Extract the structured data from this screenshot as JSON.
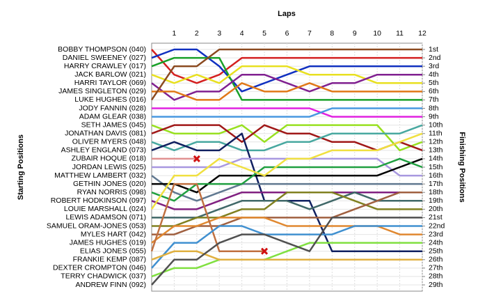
{
  "chart_data": {
    "type": "lap",
    "title": "Laps",
    "y_label": "Starting Positions",
    "y2_label": "Finishing Positions",
    "x": [
      0,
      1,
      2,
      3,
      4,
      5,
      6,
      7,
      8,
      9,
      10,
      11,
      12
    ],
    "xlim": [
      0,
      12
    ],
    "xticks": [
      1,
      2,
      3,
      4,
      5,
      6,
      7,
      8,
      9,
      10,
      11,
      12
    ],
    "ylim": [
      1,
      29
    ],
    "yticks": [
      {
        "value": 1,
        "label": "1st"
      },
      {
        "value": 2,
        "label": "2nd"
      },
      {
        "value": 3,
        "label": "3rd"
      },
      {
        "value": 4,
        "label": "4th"
      },
      {
        "value": 5,
        "label": "5th"
      },
      {
        "value": 6,
        "label": "6th"
      },
      {
        "value": 7,
        "label": "7th"
      },
      {
        "value": 8,
        "label": "8th"
      },
      {
        "value": 9,
        "label": "9th"
      },
      {
        "value": 10,
        "label": "10th"
      },
      {
        "value": 11,
        "label": "11th"
      },
      {
        "value": 12,
        "label": "12th"
      },
      {
        "value": 13,
        "label": "13th"
      },
      {
        "value": 14,
        "label": "14th"
      },
      {
        "value": 15,
        "label": "15th"
      },
      {
        "value": 16,
        "label": "16th"
      },
      {
        "value": 17,
        "label": "17th"
      },
      {
        "value": 18,
        "label": "18th"
      },
      {
        "value": 19,
        "label": "19th"
      },
      {
        "value": 20,
        "label": "20th"
      },
      {
        "value": 21,
        "label": "21st"
      },
      {
        "value": 22,
        "label": "22nd"
      },
      {
        "value": 23,
        "label": "23rd"
      },
      {
        "value": 24,
        "label": "24th"
      },
      {
        "value": 25,
        "label": "25th"
      },
      {
        "value": 26,
        "label": "26th"
      },
      {
        "value": 27,
        "label": "27th"
      },
      {
        "value": 28,
        "label": "28th"
      },
      {
        "value": 29,
        "label": "29th"
      }
    ],
    "grid": true,
    "series": [
      {
        "name": "BOBBY THOMPSON (040)",
        "color": "#d42020",
        "values": [
          1,
          4,
          5,
          4,
          2,
          2,
          2,
          2,
          2,
          2,
          2,
          2,
          2
        ]
      },
      {
        "name": "DANIEL SWEENEY (027)",
        "color": "#1030c0",
        "values": [
          2,
          1,
          1,
          3,
          6,
          5,
          4,
          3,
          3,
          3,
          3,
          3,
          3
        ]
      },
      {
        "name": "HARRY CRAWLEY (017)",
        "color": "#18a028",
        "values": [
          3,
          2,
          2,
          2,
          7,
          7,
          7,
          7,
          7,
          7,
          7,
          7,
          7
        ]
      },
      {
        "name": "JACK BARLOW (021)",
        "color": "#e8e020",
        "values": [
          4,
          5,
          4,
          5,
          3,
          3,
          3,
          4,
          4,
          4,
          5,
          5,
          5
        ]
      },
      {
        "name": "HARRI TAYLOR (069)",
        "color": "#802090",
        "values": [
          5,
          7,
          6,
          6,
          4,
          4,
          5,
          6,
          5,
          5,
          4,
          4,
          4
        ]
      },
      {
        "name": "JAMES SINGLETON (029)",
        "color": "#e07818",
        "values": [
          6,
          6,
          7,
          7,
          5,
          6,
          6,
          5,
          6,
          6,
          6,
          6,
          6
        ]
      },
      {
        "name": "LUKE HUGHES (016)",
        "color": "#8b4a20",
        "values": [
          7,
          3,
          3,
          1,
          1,
          1,
          1,
          1,
          1,
          1,
          1,
          1,
          1
        ]
      },
      {
        "name": "JODY FANNIN (028)",
        "color": "#e020e0",
        "values": [
          8,
          8,
          8,
          8,
          8,
          8,
          8,
          8,
          9,
          9,
          9,
          9,
          9
        ]
      },
      {
        "name": "ADAM GLEAR (038)",
        "color": "#4898e0",
        "values": [
          9,
          9,
          9,
          9,
          9,
          9,
          9,
          9,
          8,
          8,
          8,
          8,
          8
        ]
      },
      {
        "name": "SETH JAMES (045)",
        "color": "#98e020",
        "values": [
          10,
          11,
          11,
          11,
          10,
          12,
          10,
          10,
          10,
          10,
          10,
          13,
          12
        ]
      },
      {
        "name": "JONATHAN DAVIS (081)",
        "color": "#a01818",
        "values": [
          11,
          10,
          10,
          10,
          12,
          10,
          11,
          11,
          12,
          12,
          13,
          12,
          13
        ]
      },
      {
        "name": "OLIVER MYERS (048)",
        "color": "#48a8a0",
        "values": [
          12,
          13,
          12,
          12,
          13,
          13,
          12,
          12,
          11,
          11,
          11,
          11,
          10
        ]
      },
      {
        "name": "ASHLEY ENGLAND (073)",
        "color": "#102060",
        "values": [
          13,
          12,
          13,
          13,
          11,
          19,
          19,
          19,
          25,
          25,
          25,
          25,
          25
        ]
      },
      {
        "name": "ZUBAIR HOQUE (018)",
        "color": "#e09090",
        "retired": true,
        "values": [
          14,
          14,
          14,
          null,
          null,
          null,
          null,
          null,
          null,
          null,
          null,
          null,
          null
        ]
      },
      {
        "name": "JORDAN LEWIS (025)",
        "color": "#a898e0",
        "values": [
          15,
          15,
          15,
          15,
          14,
          14,
          14,
          14,
          14,
          14,
          14,
          16,
          16
        ]
      },
      {
        "name": "MATTHEW LAMBERT (032)",
        "color": "#607890",
        "values": [
          16,
          18,
          19,
          18,
          17,
          17,
          17,
          17,
          17,
          17,
          17,
          17,
          17
        ]
      },
      {
        "name": "GETHIN JONES (020)",
        "color": "#000000",
        "values": [
          17,
          17,
          18,
          16,
          16,
          16,
          16,
          16,
          16,
          16,
          16,
          15,
          14
        ]
      },
      {
        "name": "RYAN NORRIS (098)",
        "color": "#20a040",
        "values": [
          18,
          19,
          17,
          17,
          17,
          15,
          15,
          15,
          15,
          15,
          15,
          14,
          15
        ]
      },
      {
        "name": "ROBERT HODKINSON (097)",
        "color": "#802080",
        "values": [
          19,
          20,
          20,
          19,
          18,
          18,
          18,
          18,
          18,
          18,
          18,
          18,
          18
        ]
      },
      {
        "name": "LOUIE MARSHALL (024)",
        "color": "#f0e040",
        "values": [
          20,
          16,
          16,
          14,
          15,
          16,
          14,
          14,
          13,
          13,
          13,
          12,
          11
        ]
      },
      {
        "name": "LEWIS ADAMSON (071)",
        "color": "#406868",
        "values": [
          21,
          21,
          21,
          20,
          19,
          19,
          19,
          20,
          19,
          18,
          19,
          19,
          19
        ]
      },
      {
        "name": "SAMUEL ORAM-JONES (053)",
        "color": "#808020",
        "values": [
          22,
          22,
          21,
          21,
          20,
          20,
          18,
          18,
          18,
          19,
          20,
          20,
          20
        ]
      },
      {
        "name": "MYLES HART (042)",
        "color": "#a06040",
        "values": [
          23,
          23,
          22,
          22,
          21,
          21,
          21,
          21,
          21,
          20,
          19,
          18,
          18
        ]
      },
      {
        "name": "JAMES HUGHES (019)",
        "color": "#e08830",
        "values": [
          24,
          22,
          22,
          21,
          21,
          21,
          22,
          22,
          22,
          22,
          22,
          23,
          23
        ]
      },
      {
        "name": "ELIAS JONES (055)",
        "color": "#c07040",
        "retired": true,
        "values": [
          25,
          17,
          17,
          25,
          25,
          25,
          null,
          null,
          null,
          null,
          null,
          null,
          null
        ]
      },
      {
        "name": "DEXTER CROMPTON (046)",
        "color": "#4090d0",
        "values": [
          27,
          24,
          24,
          22,
          22,
          23,
          23,
          23,
          23,
          22,
          22,
          22,
          22
        ]
      },
      {
        "name": "TERRY CHADWICK (037)",
        "color": "#80e040",
        "values": [
          28,
          27,
          27,
          26,
          26,
          26,
          25,
          24,
          24,
          24,
          24,
          24,
          24
        ]
      },
      {
        "name": "FRANKIE KEMP (087)",
        "color": "#e0b040",
        "values": [
          26,
          25,
          25,
          26,
          26,
          26,
          26,
          26,
          26,
          26,
          26,
          26,
          26
        ]
      },
      {
        "name": "ANDREW FINN (092)",
        "color": "#505050",
        "values": [
          29,
          26,
          26,
          24,
          23,
          23,
          24,
          25,
          21,
          21,
          21,
          21,
          21
        ]
      }
    ]
  }
}
